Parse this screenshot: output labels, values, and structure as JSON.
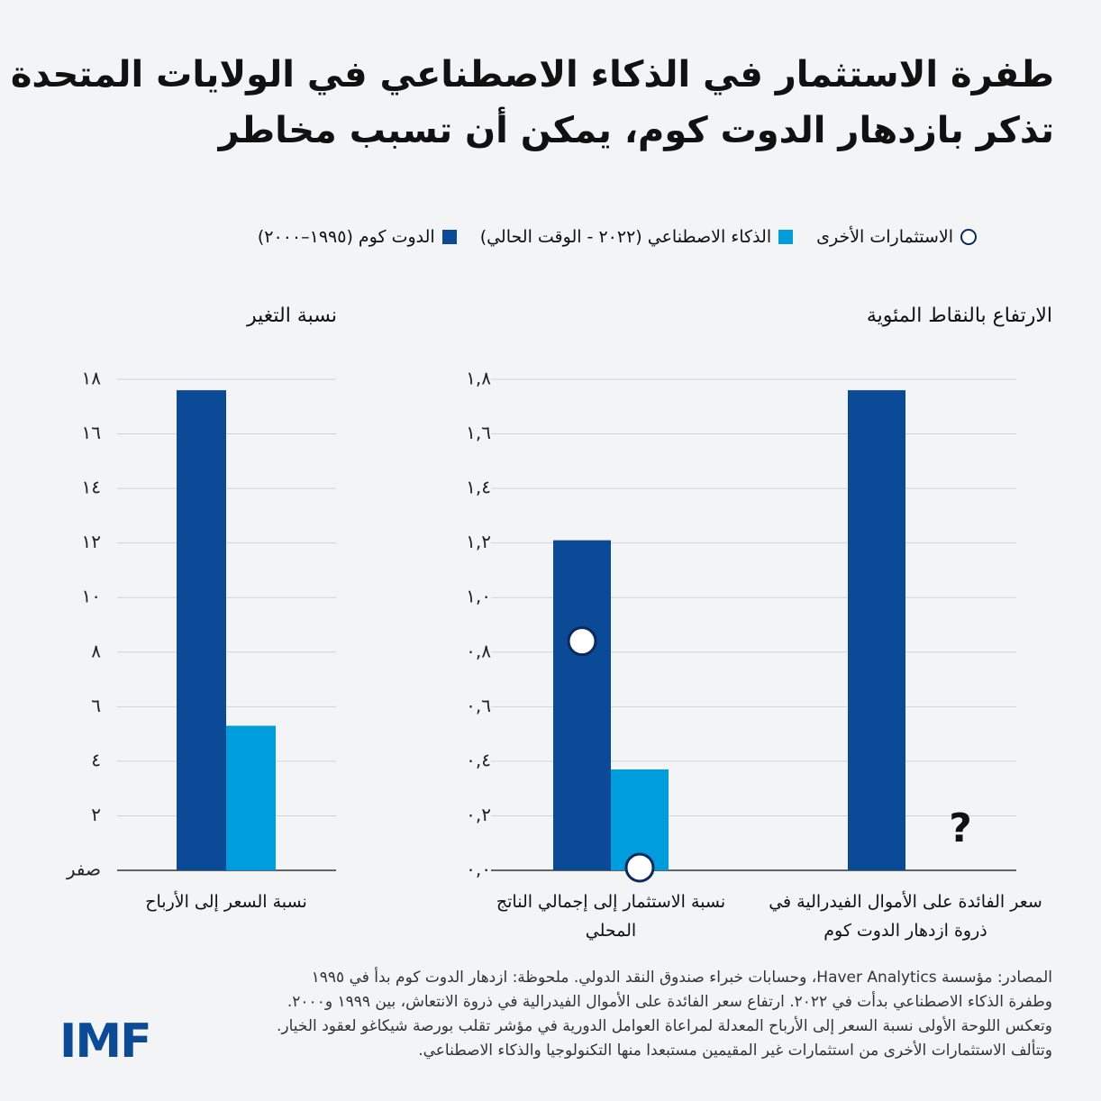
{
  "header": {
    "title": [
      "طفرة الاستثمار في الذكاء الاصطناعي في الولايات المتحدة",
      "تذكر بازدهار الدوت كوم، يمكن أن تسبب مخاطر"
    ]
  },
  "chart_data": [
    {
      "type": "bar",
      "y_label": "نسبة التغير",
      "categories": [
        "نسبة السعر إلى الأرباح"
      ],
      "series": [
        {
          "color": "#0a4a97",
          "values": [
            17.6
          ]
        },
        {
          "color": "#009ddc",
          "values": [
            5.3
          ]
        }
      ],
      "ylim": [
        0,
        18
      ],
      "yticks": [
        {
          "value": 0,
          "label": "صفر"
        },
        {
          "value": 2,
          "label": "٢"
        },
        {
          "value": 4,
          "label": "٤"
        },
        {
          "value": 6,
          "label": "٦"
        },
        {
          "value": 8,
          "label": "٨"
        },
        {
          "value": 10,
          "label": "١٠"
        },
        {
          "value": 12,
          "label": "١٢"
        },
        {
          "value": 14,
          "label": "١٤"
        },
        {
          "value": 16,
          "label": "١٦"
        },
        {
          "value": 18,
          "label": "١٨"
        }
      ],
      "grid": true
    },
    {
      "type": "bar",
      "y_label": "الارتفاع بالنقاط المئوية",
      "categories": [
        "سعر الفائدة على الأموال الفيدرالية في ذروة ازدهار الدوت كوم",
        "نسبة الاستثمار إلى إجمالي الناتج المحلي"
      ],
      "series": [
        {
          "name": "الدوت كوم (١٩٩٥–٢٠٠٠)",
          "color": "#0a4a97",
          "values": [
            1.76,
            1.21
          ]
        },
        {
          "name": "الذكاء الاصطناعي (٢٠٢٢ - الوقت الحالي)",
          "color": "#009ddc",
          "values": [
            null,
            0.37
          ]
        },
        {
          "name": "الاستثمارات الأخرى",
          "type": "marker",
          "color": "#0a2a5e",
          "values": [
            [
              null,
              null
            ],
            [
              0.84,
              0.01
            ]
          ]
        }
      ],
      "annotation": "?",
      "ylim": [
        0,
        1.8
      ],
      "yticks": [
        {
          "value": 0,
          "label": "٠,٠"
        },
        {
          "value": 0.2,
          "label": "٠,٢"
        },
        {
          "value": 0.4,
          "label": "٠,٤"
        },
        {
          "value": 0.6,
          "label": "٠,٦"
        },
        {
          "value": 0.8,
          "label": "٠,٨"
        },
        {
          "value": 1,
          "label": "١,٠"
        },
        {
          "value": 1.2,
          "label": "١,٢"
        },
        {
          "value": 1.4,
          "label": "١,٤"
        },
        {
          "value": 1.6,
          "label": "١,٦"
        },
        {
          "value": 1.8,
          "label": "١,٨"
        }
      ],
      "grid": true
    }
  ],
  "footer": {
    "note": [
      "المصادر: مؤسسة Haver Analytics، وحسابات خبراء صندوق النقد الدولي. ملحوظة: ازدهار الدوت كوم بدأ في ١٩٩٥",
      "وطفرة الذكاء الاصطناعي بدأت في ٢٠٢٢. ارتفاع سعر الفائدة على الأموال الفيدرالية في ذروة الانتعاش، بين ١٩٩٩ و٢٠٠٠.",
      "وتعكس اللوحة الأولى نسبة السعر إلى الأرباح المعدلة لمراعاة العوامل الدورية في مؤشر تقلب بورصة شيكاغو لعقود الخيار.",
      "وتتألف الاستثمارات الأخرى من استثمارات غير المقيمين مستبعدا منها التكنولوجيا والذكاء الاصطناعي."
    ],
    "logo": "IMF"
  }
}
